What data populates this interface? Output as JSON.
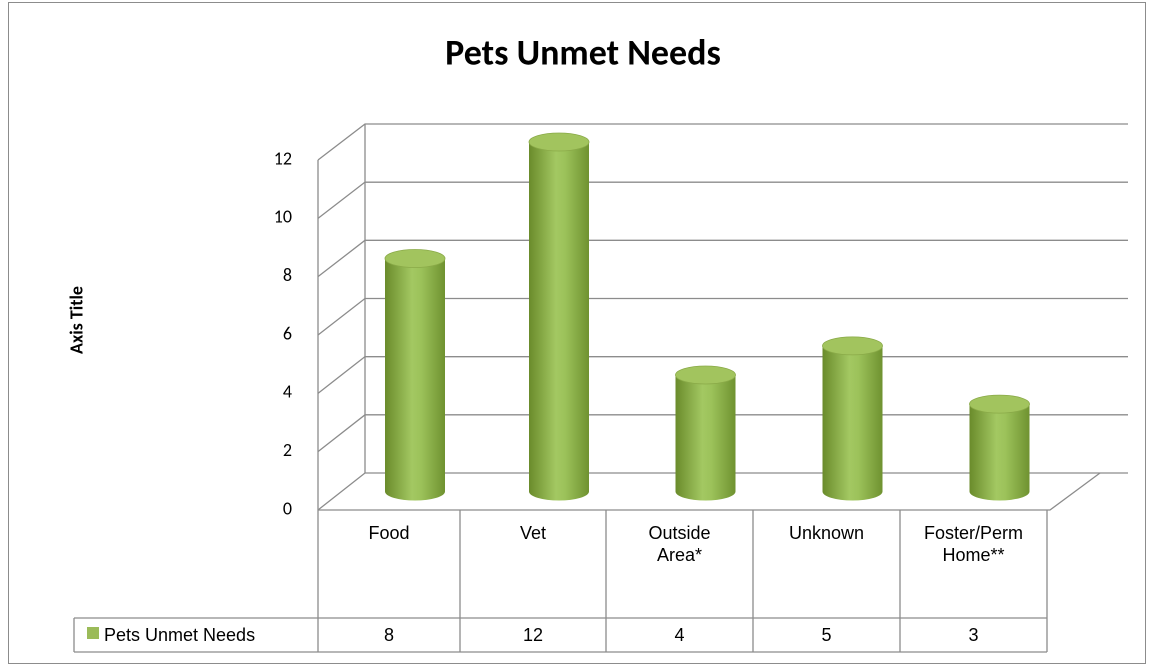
{
  "chart_data": {
    "type": "bar",
    "title": "Pets Unmet Needs",
    "y_axis_label": "Axis Title",
    "categories": [
      "Food",
      "Vet",
      "Outside Area*",
      "Unknown",
      "Foster/Perm Home**"
    ],
    "series": [
      {
        "name": "Pets Unmet Needs",
        "color": "#9bbb59",
        "values": [
          8,
          12,
          4,
          5,
          3
        ]
      }
    ],
    "ylim": [
      0,
      12
    ],
    "yticks": [
      0,
      2,
      4,
      6,
      8,
      10,
      12
    ],
    "grid": true
  }
}
